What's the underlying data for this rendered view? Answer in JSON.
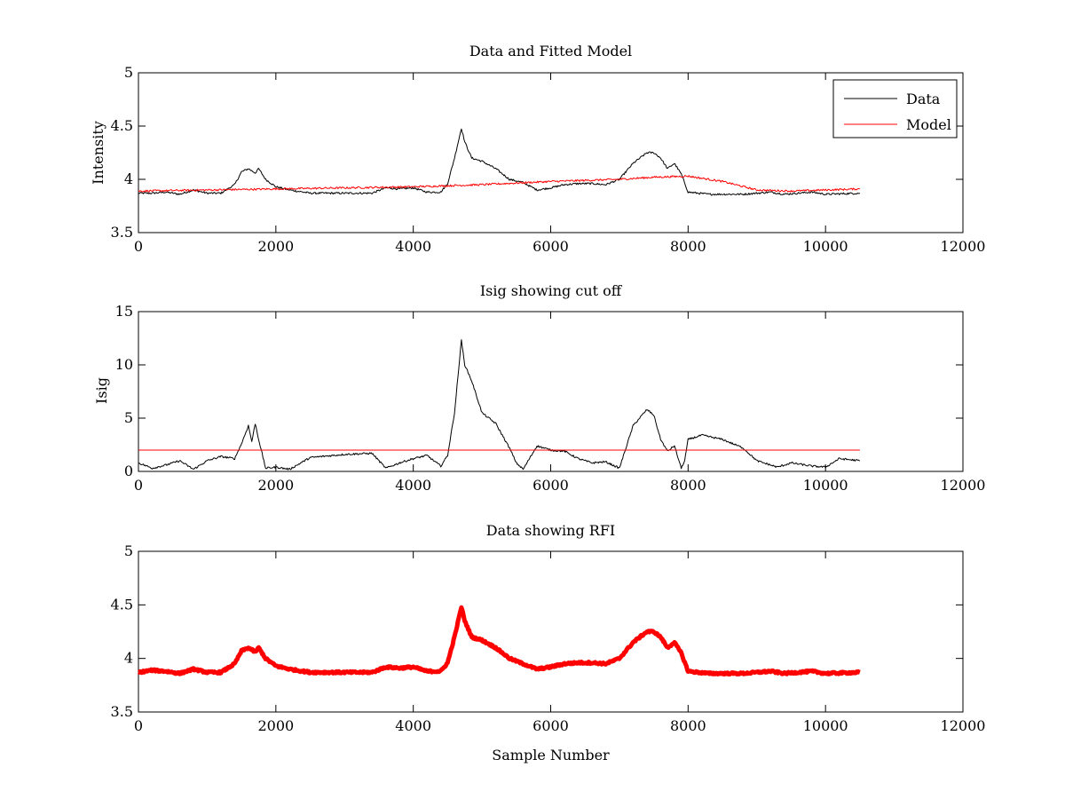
{
  "figure": {
    "background": "#ffffff",
    "line_colors": {
      "data": "#000000",
      "model": "#ff0000",
      "rfi": "#ff0000"
    }
  },
  "chart_data": [
    {
      "type": "line",
      "title": "Data and Fitted Model",
      "xlabel": "",
      "ylabel": "Intensity",
      "xlim": [
        0,
        12000
      ],
      "ylim": [
        3.5,
        5
      ],
      "xticks": [
        0,
        2000,
        4000,
        6000,
        8000,
        10000,
        12000
      ],
      "xtick_labels": [
        "0",
        "2000",
        "4000",
        "6000",
        "8000",
        "10000",
        "12000"
      ],
      "yticks": [
        3.5,
        4,
        4.5,
        5
      ],
      "ytick_labels": [
        "3.5",
        "4",
        "4.5",
        "5"
      ],
      "legend": {
        "position": "top-right",
        "entries": [
          "Data",
          "Model"
        ]
      },
      "series": [
        {
          "name": "Data",
          "color": "#000000",
          "x": [
            0,
            200,
            400,
            600,
            800,
            1000,
            1200,
            1400,
            1500,
            1600,
            1700,
            1750,
            1850,
            2000,
            2200,
            2500,
            3000,
            3400,
            3600,
            3800,
            4000,
            4200,
            4400,
            4500,
            4600,
            4700,
            4750,
            4850,
            5000,
            5200,
            5400,
            5600,
            5800,
            6000,
            6200,
            6400,
            6600,
            6800,
            7000,
            7200,
            7400,
            7500,
            7600,
            7700,
            7800,
            7900,
            8000,
            8300,
            8800,
            9200,
            9400,
            9800,
            10000,
            10500
          ],
          "y": [
            3.87,
            3.87,
            3.88,
            3.86,
            3.9,
            3.87,
            3.87,
            3.95,
            4.07,
            4.1,
            4.06,
            4.1,
            4.0,
            3.93,
            3.9,
            3.87,
            3.87,
            3.87,
            3.92,
            3.91,
            3.92,
            3.88,
            3.88,
            3.96,
            4.2,
            4.48,
            4.35,
            4.2,
            4.17,
            4.1,
            4.0,
            3.97,
            3.9,
            3.92,
            3.95,
            3.96,
            3.96,
            3.95,
            4.0,
            4.15,
            4.25,
            4.25,
            4.2,
            4.1,
            4.15,
            4.05,
            3.88,
            3.86,
            3.86,
            3.88,
            3.86,
            3.88,
            3.86,
            3.87
          ]
        },
        {
          "name": "Model",
          "color": "#ff0000",
          "x": [
            0,
            1000,
            2000,
            3000,
            4000,
            5000,
            6000,
            7000,
            7500,
            8000,
            8500,
            9000,
            9500,
            10000,
            10500
          ],
          "y": [
            3.89,
            3.9,
            3.91,
            3.92,
            3.93,
            3.95,
            3.98,
            4.0,
            4.02,
            4.03,
            3.98,
            3.9,
            3.89,
            3.9,
            3.91
          ]
        }
      ]
    },
    {
      "type": "line",
      "title": "Isig showing cut off",
      "xlabel": "",
      "ylabel": "Isig",
      "xlim": [
        0,
        12000
      ],
      "ylim": [
        0,
        15
      ],
      "xticks": [
        0,
        2000,
        4000,
        6000,
        8000,
        10000,
        12000
      ],
      "xtick_labels": [
        "0",
        "2000",
        "4000",
        "6000",
        "8000",
        "10000",
        "12000"
      ],
      "yticks": [
        0,
        5,
        10,
        15
      ],
      "ytick_labels": [
        "0",
        "5",
        "10",
        "15"
      ],
      "series": [
        {
          "color": "#000000",
          "x": [
            0,
            200,
            400,
            600,
            800,
            1000,
            1200,
            1400,
            1500,
            1600,
            1650,
            1700,
            1750,
            1850,
            2000,
            2200,
            2500,
            3000,
            3400,
            3500,
            3600,
            3800,
            4000,
            4200,
            4400,
            4500,
            4600,
            4700,
            4750,
            4850,
            5000,
            5200,
            5400,
            5500,
            5600,
            5800,
            6000,
            6200,
            6400,
            6600,
            6800,
            7000,
            7200,
            7400,
            7500,
            7600,
            7700,
            7800,
            7900,
            7950,
            8000,
            8200,
            8500,
            8800,
            9000,
            9300,
            9500,
            9800,
            10000,
            10200,
            10500
          ],
          "y": [
            0.8,
            0.3,
            0.6,
            1.0,
            0.2,
            1.0,
            1.4,
            1.2,
            2.6,
            4.3,
            2.8,
            4.5,
            3.0,
            0.3,
            0.4,
            0.2,
            1.3,
            1.6,
            1.7,
            1.0,
            0.3,
            0.8,
            1.2,
            1.5,
            0.5,
            1.5,
            5.5,
            12.3,
            10.0,
            8.5,
            5.5,
            4.5,
            2.2,
            0.8,
            0.2,
            2.4,
            2.0,
            1.9,
            1.2,
            0.8,
            0.9,
            0.3,
            4.3,
            5.8,
            5.3,
            3.0,
            1.9,
            2.4,
            0.3,
            1.0,
            3.0,
            3.4,
            3.0,
            2.2,
            1.0,
            0.4,
            0.8,
            0.5,
            0.4,
            1.2,
            1.0
          ]
        },
        {
          "color": "#ff0000",
          "x": [
            0,
            10500
          ],
          "y": [
            2.0,
            2.0
          ]
        }
      ]
    },
    {
      "type": "line",
      "title": "Data showing RFI",
      "xlabel": "Sample Number",
      "ylabel": "",
      "xlim": [
        0,
        12000
      ],
      "ylim": [
        3.5,
        5
      ],
      "xticks": [
        0,
        2000,
        4000,
        6000,
        8000,
        10000,
        12000
      ],
      "xtick_labels": [
        "0",
        "2000",
        "4000",
        "6000",
        "8000",
        "10000",
        "12000"
      ],
      "yticks": [
        3.5,
        4,
        4.5,
        5
      ],
      "ytick_labels": [
        "3.5",
        "4",
        "4.5",
        "5"
      ],
      "series": [
        {
          "color": "#ff0000",
          "x": [
            0,
            200,
            400,
            600,
            800,
            1000,
            1200,
            1400,
            1500,
            1600,
            1700,
            1750,
            1850,
            2000,
            2200,
            2500,
            3000,
            3400,
            3600,
            3800,
            4000,
            4200,
            4400,
            4500,
            4600,
            4700,
            4750,
            4850,
            5000,
            5200,
            5400,
            5600,
            5800,
            6000,
            6200,
            6400,
            6600,
            6800,
            7000,
            7200,
            7400,
            7500,
            7600,
            7700,
            7800,
            7900,
            8000,
            8300,
            8800,
            9200,
            9400,
            9800,
            10000,
            10500
          ],
          "y": [
            3.87,
            3.89,
            3.88,
            3.86,
            3.9,
            3.87,
            3.87,
            3.95,
            4.07,
            4.1,
            4.06,
            4.1,
            4.0,
            3.93,
            3.9,
            3.87,
            3.87,
            3.87,
            3.92,
            3.91,
            3.92,
            3.88,
            3.88,
            3.96,
            4.2,
            4.48,
            4.35,
            4.2,
            4.17,
            4.1,
            4.0,
            3.95,
            3.9,
            3.92,
            3.95,
            3.96,
            3.96,
            3.95,
            4.0,
            4.15,
            4.25,
            4.25,
            4.2,
            4.1,
            4.15,
            4.05,
            3.88,
            3.86,
            3.86,
            3.88,
            3.86,
            3.88,
            3.86,
            3.87
          ]
        }
      ]
    }
  ]
}
